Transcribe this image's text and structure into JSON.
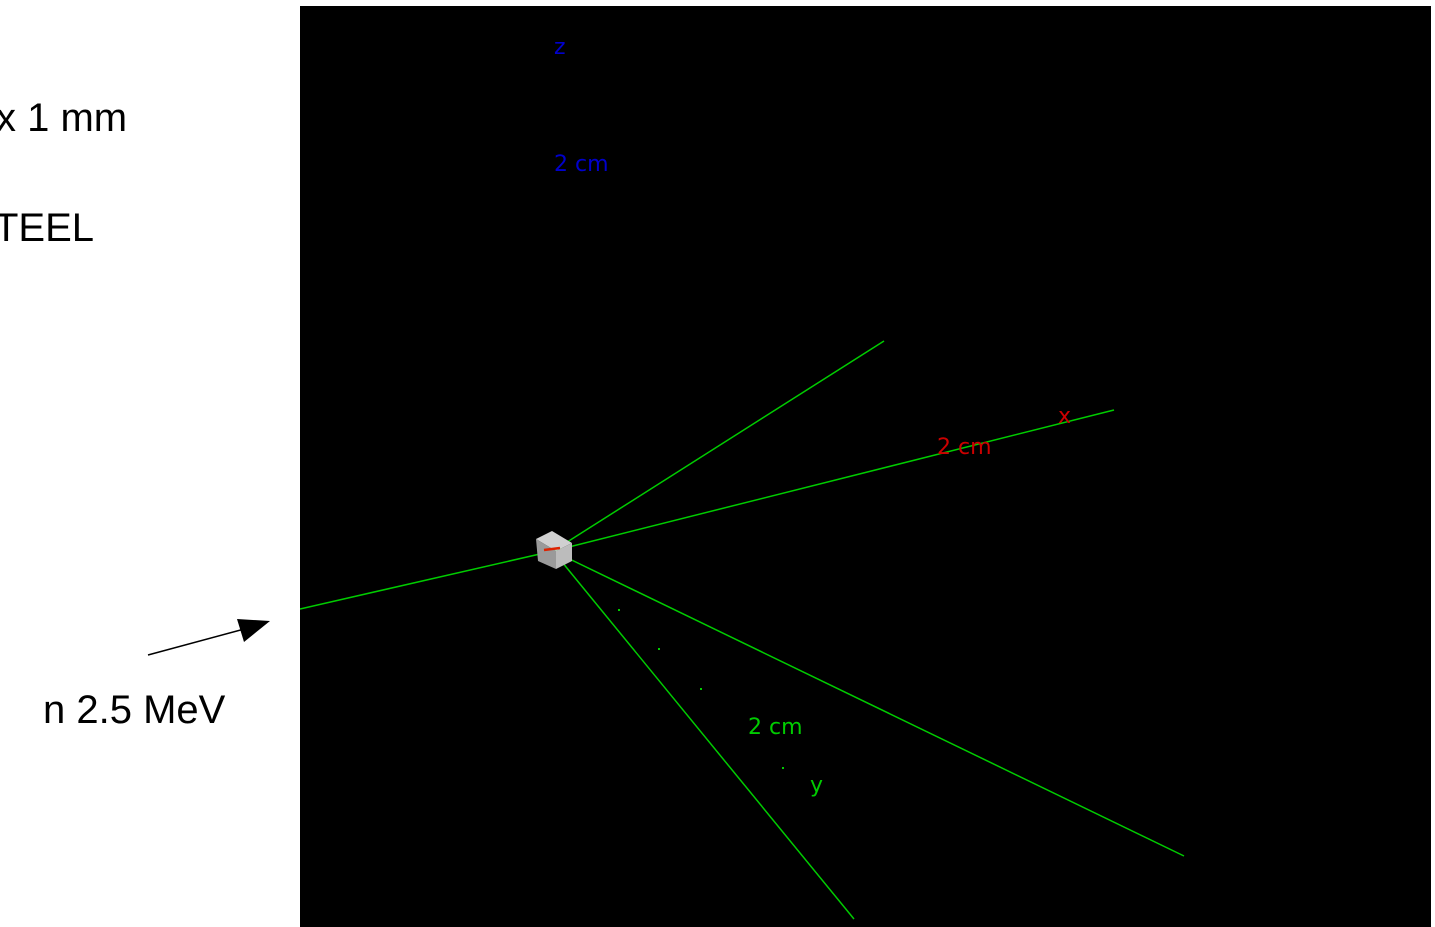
{
  "annotations": {
    "dimensions": "x 1 mm",
    "material": "TEEL",
    "beam": "n 2.5 MeV"
  },
  "axes": {
    "z": {
      "name": "z",
      "scale": "2 cm",
      "color": "#0000cc"
    },
    "x": {
      "name": "x",
      "scale": "2 cm",
      "color": "#cc0000"
    },
    "y": {
      "name": "y",
      "scale": "2 cm",
      "color": "#00cc00"
    }
  },
  "colors": {
    "background": "#000000",
    "track": "#00cc00",
    "target": "#a8a8a8"
  }
}
